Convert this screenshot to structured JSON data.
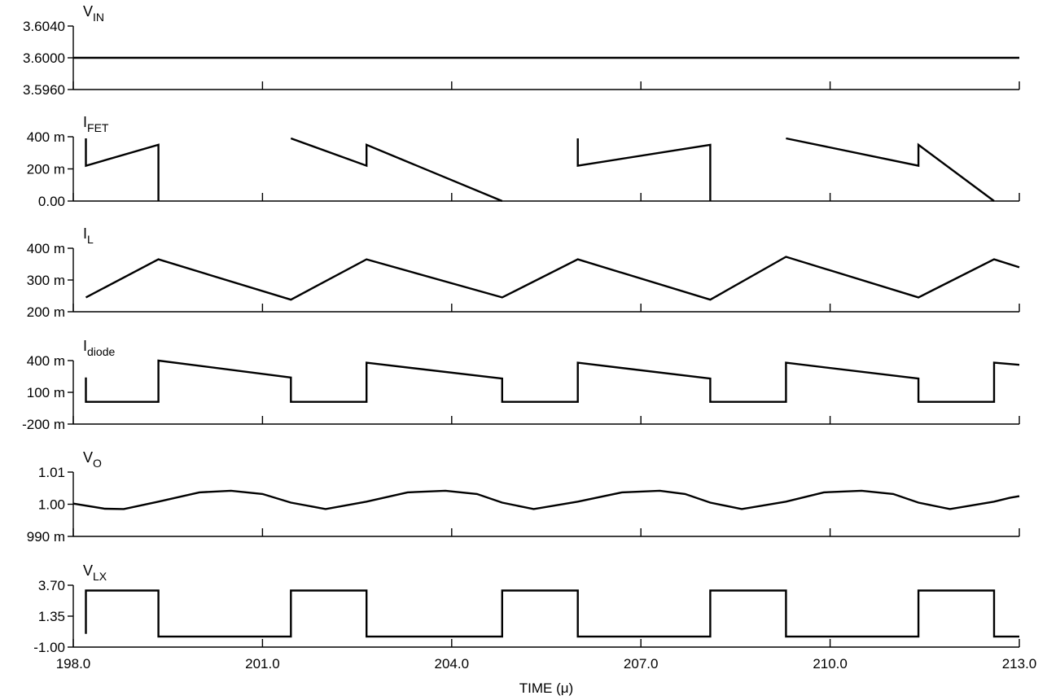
{
  "chart_data": {
    "type": "line",
    "xlabel": "TIME (μ)",
    "x_range": [
      198.0,
      213.0
    ],
    "x_ticks": [
      198.0,
      201.0,
      204.0,
      207.0,
      210.0,
      213.0
    ],
    "x_tick_labels": [
      "198.0",
      "201.0",
      "204.0",
      "207.0",
      "210.0",
      "213.0"
    ],
    "line_color": "#000000",
    "background": "#ffffff",
    "grid": false,
    "panels": [
      {
        "id": "vin",
        "label": "V",
        "label_sub": "IN",
        "y_ticks": [
          3.596,
          3.6,
          3.604
        ],
        "y_tick_labels": [
          "3.5960",
          "3.6000",
          "3.6040"
        ],
        "ylim": [
          3.596,
          3.604
        ],
        "series": [
          {
            "x": [
              198.0,
              213.0
            ],
            "y": [
              3.6,
              3.6
            ]
          }
        ]
      },
      {
        "id": "ifet",
        "label": "I",
        "label_sub": "FET",
        "y_ticks": [
          0,
          0.2,
          0.4
        ],
        "y_tick_labels": [
          "0.00",
          "200 m",
          "400 m"
        ],
        "ylim": [
          0,
          0.4
        ],
        "series": [
          {
            "x": [
              198.2,
              198.2,
              199.35,
              199.35,
              201.45,
              201.45,
              202.65,
              202.65,
              204.8,
              204.8,
              206.0,
              206.0,
              208.1,
              208.1,
              209.3,
              209.3,
              211.4,
              211.4,
              212.6,
              212.6
            ],
            "y": [
              0.39,
              0.22,
              0.35,
              0.0,
              null,
              0.39,
              0.22,
              0.35,
              0.0,
              null,
              0.39,
              0.22,
              0.35,
              0.0,
              null,
              0.39,
              0.22,
              0.35,
              0.0,
              null
            ],
            "note": ""
          }
        ]
      },
      {
        "id": "il",
        "label": "I",
        "label_sub": "L",
        "y_ticks": [
          0.2,
          0.3,
          0.4
        ],
        "y_tick_labels": [
          "200 m",
          "300 m",
          "400 m"
        ],
        "ylim": [
          0.2,
          0.4
        ],
        "series": [
          {
            "x": [
              198.2,
              199.35,
              201.45,
              202.65,
              204.8,
              206.0,
              208.1,
              209.3,
              211.4,
              212.6,
              213.0
            ],
            "y": [
              0.245,
              0.365,
              0.238,
              0.365,
              0.245,
              0.365,
              0.238,
              0.373,
              0.245,
              0.365,
              0.34
            ]
          }
        ]
      },
      {
        "id": "idiode",
        "label": "I",
        "label_sub": "diode",
        "y_ticks": [
          -0.2,
          0.1,
          0.4
        ],
        "y_tick_labels": [
          "-200 m",
          "100 m",
          "400 m"
        ],
        "ylim": [
          -0.2,
          0.4
        ],
        "series": [
          {
            "x": [
              198.2,
              198.2,
              199.35,
              199.35,
              201.45,
              201.45,
              202.65,
              202.65,
              204.8,
              204.8,
              206.0,
              206.0,
              208.1,
              208.1,
              209.3,
              209.3,
              211.4,
              211.4,
              212.6,
              212.6,
              213.0
            ],
            "y": [
              0.24,
              0.01,
              0.01,
              0.4,
              0.24,
              0.01,
              0.01,
              0.38,
              0.23,
              0.01,
              0.01,
              0.38,
              0.23,
              0.01,
              0.01,
              0.38,
              0.23,
              0.01,
              0.01,
              0.38,
              0.36
            ]
          }
        ]
      },
      {
        "id": "vo",
        "label": "V",
        "label_sub": "O",
        "y_ticks": [
          0.99,
          1.0,
          1.01
        ],
        "y_tick_labels": [
          "990 m",
          "1.00",
          "1.01"
        ],
        "ylim": [
          0.99,
          1.01
        ],
        "series": [
          {
            "x": [
              198.0,
              198.5,
              198.8,
              199.35,
              200.0,
              200.5,
              201.0,
              201.45,
              202.0,
              202.65,
              203.3,
              203.9,
              204.4,
              204.8,
              205.3,
              206.0,
              206.7,
              207.3,
              207.7,
              208.1,
              208.6,
              209.3,
              209.9,
              210.5,
              211.0,
              211.4,
              211.9,
              212.6,
              212.85,
              213.0
            ],
            "y": [
              1.0002,
              0.9986,
              0.9985,
              1.0008,
              1.0037,
              1.0042,
              1.0032,
              1.0005,
              0.9985,
              1.0008,
              1.0037,
              1.0042,
              1.0032,
              1.0005,
              0.9985,
              1.0008,
              1.0037,
              1.0042,
              1.0032,
              1.0005,
              0.9985,
              1.0008,
              1.0037,
              1.0042,
              1.0032,
              1.0005,
              0.9985,
              1.0008,
              1.002,
              1.0025
            ]
          }
        ]
      },
      {
        "id": "vlx",
        "label": "V",
        "label_sub": "LX",
        "y_ticks": [
          -1.0,
          1.35,
          3.7
        ],
        "y_tick_labels": [
          "-1.00",
          "1.35",
          "3.70"
        ],
        "ylim": [
          -1.0,
          3.7
        ],
        "series": [
          {
            "x": [
              198.2,
              198.2,
              199.35,
              199.35,
              201.45,
              201.45,
              202.65,
              202.65,
              204.8,
              204.8,
              206.0,
              206.0,
              208.1,
              208.1,
              209.3,
              209.3,
              211.4,
              211.4,
              212.6,
              212.6,
              213.0
            ],
            "y": [
              0.0,
              3.3,
              3.3,
              -0.2,
              -0.2,
              3.3,
              3.3,
              -0.2,
              -0.2,
              3.3,
              3.3,
              -0.2,
              -0.2,
              3.3,
              3.3,
              -0.2,
              -0.2,
              3.3,
              3.3,
              -0.2,
              -0.2
            ]
          }
        ]
      }
    ]
  }
}
